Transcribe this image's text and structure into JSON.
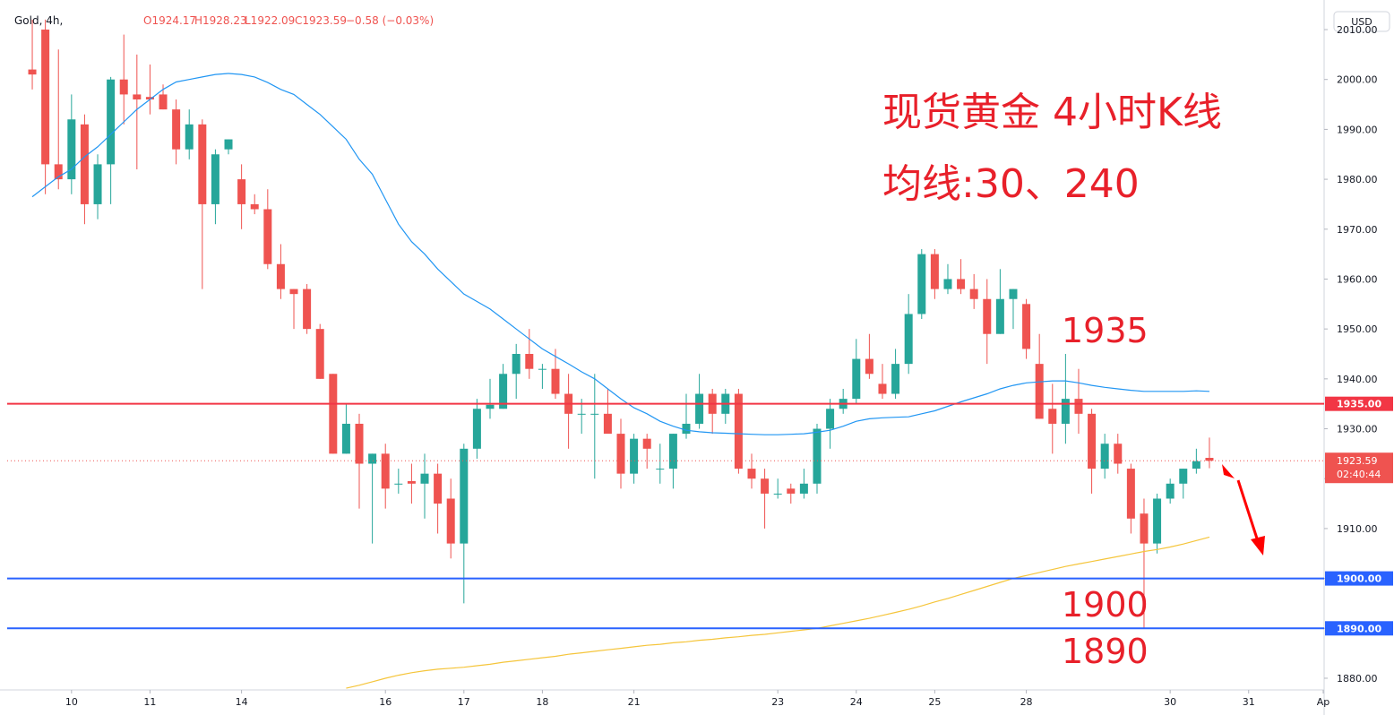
{
  "chart_data": {
    "type": "candlestick",
    "header": {
      "symbol": "Gold, 4h,",
      "open": "O1924.17",
      "high": "H1928.23",
      "low": "L1922.09",
      "close": "C1923.59",
      "change": "−0.58 (−0.03%)",
      "currency": "USD"
    },
    "annotations": [
      "现货黄金 4小时K线",
      "均线:30、240",
      "1935",
      "1900",
      "1890"
    ],
    "xlim": [
      -1.92,
      98.77
    ],
    "xticks": [
      {
        "value": 3,
        "label": "10"
      },
      {
        "value": 9,
        "label": "11"
      },
      {
        "value": 16,
        "label": "14"
      },
      {
        "value": 27,
        "label": "16"
      },
      {
        "value": 33,
        "label": "17"
      },
      {
        "value": 39,
        "label": "18"
      },
      {
        "value": 46,
        "label": "21"
      },
      {
        "value": 57,
        "label": "23"
      },
      {
        "value": 63,
        "label": "24"
      },
      {
        "value": 69,
        "label": "25"
      },
      {
        "value": 76,
        "label": "28"
      },
      {
        "value": 87,
        "label": "30"
      },
      {
        "value": 93,
        "label": "31"
      },
      {
        "value": 98.7,
        "label": "Ap"
      }
    ],
    "ylim": [
      1877.66,
      2015.93
    ],
    "yticks": [
      {
        "value": 1880,
        "label": "1880.00"
      },
      {
        "value": 1890,
        "label": "1890.00"
      },
      {
        "value": 1900,
        "label": "1900.00"
      },
      {
        "value": 1910,
        "label": "1910.00"
      },
      {
        "value": 1920,
        "label": "1920.00"
      },
      {
        "value": 1930,
        "label": "1930.00"
      },
      {
        "value": 1940,
        "label": "1940.00"
      },
      {
        "value": 1950,
        "label": "1950.00"
      },
      {
        "value": 1960,
        "label": "1960.00"
      },
      {
        "value": 1970,
        "label": "1970.00"
      },
      {
        "value": 1980,
        "label": "1980.00"
      },
      {
        "value": 1990,
        "label": "1990.00"
      },
      {
        "value": 2000,
        "label": "2000.00"
      },
      {
        "value": 2010,
        "label": "2010.00"
      }
    ],
    "up_color": "#26a69a",
    "down_color": "#ef5350",
    "ohlc": {
      "open": [
        2002,
        2010,
        1983,
        1980,
        1991,
        1975,
        1983,
        2000,
        1997,
        1996.5,
        1997,
        1994,
        1986,
        1991,
        1975,
        1986,
        1980,
        1975,
        1974,
        1963,
        1958,
        1958,
        1950,
        1941,
        1925,
        1931,
        1923,
        1925,
        1919,
        1919.5,
        1919,
        1921,
        1916,
        1907,
        1926,
        1934,
        1934,
        1941,
        1945,
        1942,
        1942,
        1937,
        1933,
        1933,
        1933,
        1929,
        1921,
        1928,
        1922,
        1922,
        1929,
        1931,
        1937,
        1933,
        1937,
        1922,
        1920,
        1917,
        1918,
        1917,
        1919,
        1930,
        1934,
        1936,
        1944,
        1939,
        1937,
        1943,
        1953,
        1965,
        1958,
        1960,
        1958,
        1956,
        1949,
        1956,
        1955,
        1943,
        1934,
        1931,
        1936,
        1933,
        1922,
        1927,
        1922,
        1913,
        1907,
        1916,
        1919,
        1922,
        1924.17
      ],
      "high": [
        2012,
        2012,
        2006,
        1997,
        1993,
        1985,
        2000.5,
        2009,
        2005,
        2003,
        1999,
        1996,
        1994,
        1992,
        1986,
        1988,
        1983,
        1977,
        1978,
        1967,
        1958,
        1959,
        1951,
        1941,
        1935,
        1933,
        1925,
        1927,
        1922,
        1923,
        1925,
        1923,
        1920,
        1927,
        1936,
        1940,
        1943,
        1947,
        1950,
        1943,
        1946,
        1941,
        1936,
        1941,
        1938,
        1932,
        1929,
        1929,
        1927,
        1929,
        1937,
        1941,
        1938,
        1938,
        1938,
        1925,
        1922,
        1920,
        1919,
        1922,
        1931,
        1936,
        1938,
        1948,
        1949,
        1943,
        1946,
        1957,
        1966,
        1966,
        1963,
        1964,
        1961,
        1960,
        1962,
        1958,
        1956,
        1949,
        1939,
        1945,
        1942,
        1934,
        1929,
        1929,
        1923,
        1916,
        1917,
        1920,
        1922,
        1926,
        1928.23
      ],
      "low": [
        1998,
        1977,
        1978,
        1977,
        1971,
        1972,
        1975,
        1991,
        1982,
        1993,
        1994,
        1983,
        1984,
        1958,
        1971,
        1985,
        1970,
        1973,
        1962,
        1956,
        1950,
        1949,
        1940,
        1925,
        1925,
        1914,
        1907,
        1914,
        1917,
        1915,
        1912,
        1909,
        1904,
        1895,
        1924,
        1932,
        1934,
        1936,
        1940,
        1938,
        1936,
        1926,
        1929,
        1920,
        1930,
        1918,
        1919,
        1922,
        1919,
        1918,
        1928,
        1930,
        1929,
        1931,
        1921,
        1918,
        1910,
        1916,
        1915,
        1916,
        1917,
        1926,
        1933,
        1935,
        1940,
        1936,
        1936,
        1941,
        1952,
        1956,
        1957,
        1957,
        1954,
        1943,
        1949,
        1950,
        1944,
        1932,
        1925,
        1927,
        1929,
        1917,
        1920,
        1921,
        1909,
        1890,
        1905,
        1915,
        1916,
        1921,
        1922.09
      ],
      "close": [
        2001,
        1983,
        1980,
        1992,
        1975,
        1983,
        2000,
        1997,
        1996,
        1996,
        1994,
        1986,
        1991,
        1975,
        1985,
        1988,
        1975,
        1974,
        1963,
        1958,
        1957,
        1950,
        1940,
        1925,
        1931,
        1923,
        1925,
        1918,
        1919,
        1919,
        1921,
        1915,
        1907,
        1926,
        1934,
        1934.8,
        1941,
        1945,
        1942,
        1942,
        1937,
        1933,
        1933,
        1933,
        1929,
        1921,
        1928,
        1926,
        1922,
        1929,
        1931,
        1937,
        1933,
        1937,
        1922,
        1920,
        1917,
        1917,
        1917,
        1919,
        1930,
        1934,
        1936,
        1944,
        1941,
        1937,
        1943,
        1953,
        1965,
        1958,
        1960,
        1958,
        1956,
        1949,
        1956,
        1958,
        1946,
        1932,
        1931,
        1936,
        1933,
        1922,
        1927,
        1923,
        1912,
        1907,
        1916,
        1919,
        1922,
        1923.5,
        1923.59
      ]
    },
    "ma": [
      {
        "color": "#2196f3",
        "values": [
          1976.5,
          1978.5,
          1980.5,
          1982,
          1984.5,
          1986.5,
          1989,
          1991.5,
          1994,
          1996,
          1998,
          1999.5,
          2000,
          2000.5,
          2001,
          2001.2,
          2001,
          2000.5,
          1999.4,
          1998,
          1997,
          1995,
          1993,
          1990.5,
          1988,
          1984,
          1981,
          1976,
          1971,
          1967.5,
          1965,
          1962,
          1959.5,
          1957,
          1955.5,
          1954,
          1952,
          1950,
          1948,
          1946,
          1944.5,
          1943,
          1941.4,
          1940,
          1938,
          1936,
          1934.2,
          1933,
          1931.5,
          1930.5,
          1929.7,
          1929.4,
          1929.2,
          1929.1,
          1929,
          1928.9,
          1928.8,
          1928.8,
          1928.9,
          1929,
          1929.3,
          1929.7,
          1930.5,
          1931.5,
          1932,
          1932.2,
          1932.3,
          1932.4,
          1933,
          1933.6,
          1934.5,
          1935.4,
          1936.2,
          1937,
          1938,
          1938.7,
          1939.2,
          1939.4,
          1939.6,
          1939.6,
          1939.2,
          1938.7,
          1938.3,
          1938,
          1937.7,
          1937.5,
          1937.5,
          1937.5,
          1937.5,
          1937.6,
          1937.5
        ]
      },
      {
        "color": "#f5c53b",
        "values": [
          null,
          null,
          null,
          null,
          null,
          null,
          null,
          null,
          null,
          null,
          null,
          null,
          null,
          null,
          null,
          null,
          null,
          null,
          null,
          null,
          null,
          null,
          null,
          null,
          1878,
          1878.6,
          1879.3,
          1880,
          1880.6,
          1881.1,
          1881.5,
          1881.8,
          1882,
          1882.2,
          1882.5,
          1882.8,
          1883.2,
          1883.5,
          1883.8,
          1884.1,
          1884.4,
          1884.8,
          1885.1,
          1885.4,
          1885.7,
          1886,
          1886.3,
          1886.6,
          1886.8,
          1887.1,
          1887.3,
          1887.6,
          1887.8,
          1888.1,
          1888.3,
          1888.6,
          1888.8,
          1889.1,
          1889.4,
          1889.7,
          1890,
          1890.5,
          1891,
          1891.5,
          1892,
          1892.6,
          1893.2,
          1893.8,
          1894.5,
          1895.3,
          1896,
          1896.8,
          1897.6,
          1898.4,
          1899.2,
          1900,
          1900.6,
          1901.2,
          1901.8,
          1902.4,
          1902.9,
          1903.4,
          1903.9,
          1904.4,
          1904.9,
          1905.4,
          1905.8,
          1906.3,
          1906.9,
          1907.6,
          1908.3
        ]
      }
    ],
    "levels": [
      {
        "value": 1935,
        "label": "1935.00",
        "color": "#f23645"
      },
      {
        "value": 1900,
        "label": "1900.00",
        "color": "#2962ff"
      },
      {
        "value": 1890,
        "label": "1890.00",
        "color": "#2962ff"
      }
    ],
    "last_price": {
      "value": 1923.59,
      "label": "1923.59",
      "countdown": "02:40:44",
      "color": "#ef5350"
    }
  }
}
